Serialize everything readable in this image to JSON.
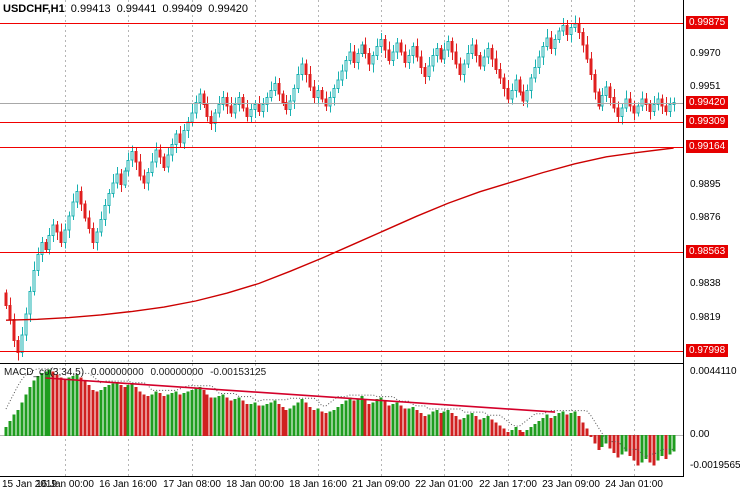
{
  "header": {
    "symbol_period": "USDCHF,H1",
    "open": "0.99413",
    "high": "0.99441",
    "low": "0.99409",
    "close": "0.99420"
  },
  "chart_data": {
    "type": "candlestick",
    "title": "USDCHF,H1",
    "legend_position": "none",
    "grid": "vertical-dashed",
    "main": {
      "ylim": [
        0.9793,
        1.00007
      ],
      "first_open": 0.9833,
      "closes": [
        0.9826,
        0.9818,
        0.9806,
        0.9799,
        0.9809,
        0.9821,
        0.9834,
        0.9846,
        0.9855,
        0.9862,
        0.9858,
        0.9866,
        0.9872,
        0.9868,
        0.9862,
        0.9869,
        0.9877,
        0.9885,
        0.9891,
        0.9884,
        0.9876,
        0.987,
        0.9862,
        0.9868,
        0.9875,
        0.9883,
        0.989,
        0.9896,
        0.9901,
        0.9895,
        0.9903,
        0.9909,
        0.9914,
        0.9908,
        0.99,
        0.9896,
        0.9902,
        0.9908,
        0.9915,
        0.9911,
        0.9905,
        0.9912,
        0.9918,
        0.9924,
        0.9919,
        0.9926,
        0.9931,
        0.9936,
        0.9942,
        0.9947,
        0.9941,
        0.9934,
        0.993,
        0.9936,
        0.9941,
        0.9945,
        0.994,
        0.9936,
        0.9941,
        0.9945,
        0.9939,
        0.9934,
        0.9938,
        0.9941,
        0.9937,
        0.9941,
        0.9945,
        0.9949,
        0.9953,
        0.9947,
        0.9942,
        0.9938,
        0.9943,
        0.995,
        0.9958,
        0.9964,
        0.9958,
        0.9951,
        0.9945,
        0.9949,
        0.9944,
        0.994,
        0.9945,
        0.995,
        0.9955,
        0.996,
        0.9966,
        0.9971,
        0.9965,
        0.997,
        0.9975,
        0.997,
        0.9964,
        0.9969,
        0.9974,
        0.9978,
        0.9972,
        0.9966,
        0.9971,
        0.9976,
        0.9971,
        0.9965,
        0.9969,
        0.9974,
        0.9968,
        0.9962,
        0.9957,
        0.9963,
        0.9969,
        0.9973,
        0.9967,
        0.9972,
        0.9977,
        0.9971,
        0.9964,
        0.9958,
        0.9964,
        0.997,
        0.9975,
        0.9969,
        0.9963,
        0.9968,
        0.9973,
        0.9967,
        0.9961,
        0.9956,
        0.995,
        0.9944,
        0.9949,
        0.9955,
        0.9948,
        0.9943,
        0.9949,
        0.9956,
        0.9962,
        0.9968,
        0.9974,
        0.9979,
        0.9973,
        0.9978,
        0.9983,
        0.9986,
        0.9981,
        0.9985,
        0.9987,
        0.9982,
        0.9975,
        0.9967,
        0.9958,
        0.9948,
        0.994,
        0.9946,
        0.9951,
        0.9945,
        0.9939,
        0.9934,
        0.9939,
        0.9944,
        0.994,
        0.9936,
        0.994,
        0.9944,
        0.9941,
        0.9937,
        0.9941,
        0.9944,
        0.994,
        0.9937,
        0.9941,
        0.9942
      ],
      "open_equals_previous_close": true,
      "ma_line": {
        "color": "#cc0000",
        "points": [
          [
            0,
            0.98175
          ],
          [
            8,
            0.9818
          ],
          [
            16,
            0.9819
          ],
          [
            24,
            0.98205
          ],
          [
            32,
            0.98225
          ],
          [
            40,
            0.9825
          ],
          [
            48,
            0.98285
          ],
          [
            56,
            0.9833
          ],
          [
            64,
            0.98385
          ],
          [
            72,
            0.98455
          ],
          [
            80,
            0.9853
          ],
          [
            88,
            0.9861
          ],
          [
            96,
            0.9869
          ],
          [
            104,
            0.9877
          ],
          [
            112,
            0.98845
          ],
          [
            120,
            0.9891
          ],
          [
            128,
            0.98965
          ],
          [
            136,
            0.9902
          ],
          [
            144,
            0.9907
          ],
          [
            152,
            0.9911
          ],
          [
            160,
            0.99135
          ],
          [
            169,
            0.9916
          ]
        ]
      },
      "hlines": [
        {
          "price": 0.99875,
          "label": "0.99875"
        },
        {
          "price": 0.99309,
          "label": "0.99309"
        },
        {
          "price": 0.99164,
          "label": "0.99164"
        },
        {
          "price": 0.98563,
          "label": "0.98563"
        },
        {
          "price": 0.97998,
          "label": "0.97998"
        }
      ],
      "current_price": {
        "value": 0.9942,
        "label": "0.99420"
      },
      "axis_ticks": [
        "0.9970",
        "0.9951",
        "0.9895",
        "0.9876",
        "0.9838",
        "0.9819"
      ],
      "colors": {
        "up": "#17b0b0",
        "down": "#e01f1f",
        "hline": "#f00000",
        "bid_line": "#a8a8a8"
      }
    },
    "macd": {
      "label": "MACD_co(3,34,5)",
      "values_display": [
        "0.00000000",
        "0.00000000",
        "-0.00153125"
      ],
      "ylim": [
        -0.00262,
        0.0046
      ],
      "values": [
        0.0005,
        0.0009,
        0.0013,
        0.0016,
        0.0021,
        0.0026,
        0.0031,
        0.0035,
        0.0038,
        0.004,
        0.0041,
        0.0042,
        0.0041,
        0.0039,
        0.0037,
        0.0036,
        0.0037,
        0.0038,
        0.0039,
        0.0037,
        0.0035,
        0.0032,
        0.0029,
        0.0028,
        0.0029,
        0.0031,
        0.0032,
        0.0033,
        0.0034,
        0.0032,
        0.0031,
        0.0032,
        0.0033,
        0.0031,
        0.0028,
        0.0026,
        0.0025,
        0.0026,
        0.0028,
        0.0027,
        0.0025,
        0.0026,
        0.0027,
        0.0028,
        0.0026,
        0.0027,
        0.0028,
        0.0029,
        0.003,
        0.0031,
        0.0029,
        0.0026,
        0.0024,
        0.0024,
        0.0025,
        0.0026,
        0.0024,
        0.0022,
        0.0023,
        0.0024,
        0.0022,
        0.002,
        0.002,
        0.0021,
        0.0019,
        0.0019,
        0.002,
        0.0021,
        0.0022,
        0.002,
        0.0018,
        0.0016,
        0.0017,
        0.0019,
        0.0021,
        0.0023,
        0.0021,
        0.0018,
        0.0016,
        0.0017,
        0.0015,
        0.0014,
        0.0015,
        0.0016,
        0.0018,
        0.002,
        0.0022,
        0.0024,
        0.0022,
        0.0023,
        0.0025,
        0.0023,
        0.002,
        0.0021,
        0.0023,
        0.0024,
        0.0022,
        0.0019,
        0.002,
        0.0021,
        0.0019,
        0.0017,
        0.0017,
        0.0018,
        0.0016,
        0.0014,
        0.0012,
        0.0013,
        0.0015,
        0.0016,
        0.0014,
        0.0015,
        0.0016,
        0.0014,
        0.0012,
        0.001,
        0.0011,
        0.0013,
        0.0014,
        0.0012,
        0.001,
        0.0011,
        0.0012,
        0.001,
        0.0008,
        0.0006,
        0.0004,
        0.0002,
        0.0003,
        0.0005,
        0.0003,
        0.0002,
        0.0003,
        0.0005,
        0.0007,
        0.0009,
        0.0011,
        0.0013,
        0.0011,
        0.0012,
        0.0014,
        0.0015,
        0.0013,
        0.0014,
        0.0015,
        0.0012,
        0.0008,
        0.0004,
        0.0,
        -0.0005,
        -0.0009,
        -0.0007,
        -0.0005,
        -0.0008,
        -0.0011,
        -0.0014,
        -0.0012,
        -0.001,
        -0.0013,
        -0.0016,
        -0.0019,
        -0.0017,
        -0.0015,
        -0.0017,
        -0.0019,
        -0.0016,
        -0.0013,
        -0.0015,
        -0.0012,
        -0.001
      ],
      "trendline": {
        "from": [
          10,
          0.0037
        ],
        "to": [
          139,
          0.0015
        ],
        "color": "#d4002a"
      },
      "axis_labels": [
        {
          "v": 0.004411,
          "label": "0.0044110"
        },
        {
          "v": 0,
          "label": "0.00"
        },
        {
          "v": -0.0019565,
          "label": "-0.0019565"
        }
      ],
      "colors": {
        "pos": "#1f9d1f",
        "neg": "#d02020",
        "zero_line": "#b8b8b8",
        "signal_dotted": "#555555"
      }
    },
    "time_axis": {
      "labels": [
        {
          "text": "15 Jan 2019",
          "bar": 0
        },
        {
          "text": "16 Jan 00:00",
          "bar": 15
        },
        {
          "text": "16 Jan 16:00",
          "bar": 31
        },
        {
          "text": "17 Jan 08:00",
          "bar": 47
        },
        {
          "text": "18 Jan 00:00",
          "bar": 63
        },
        {
          "text": "18 Jan 16:00",
          "bar": 79
        },
        {
          "text": "21 Jan 09:00",
          "bar": 95
        },
        {
          "text": "22 Jan 01:00",
          "bar": 111
        },
        {
          "text": "22 Jan 17:00",
          "bar": 127
        },
        {
          "text": "23 Jan 09:00",
          "bar": 143
        },
        {
          "text": "24 Jan 01:00",
          "bar": 159
        }
      ],
      "grid_color": "#b5b5b5"
    }
  }
}
